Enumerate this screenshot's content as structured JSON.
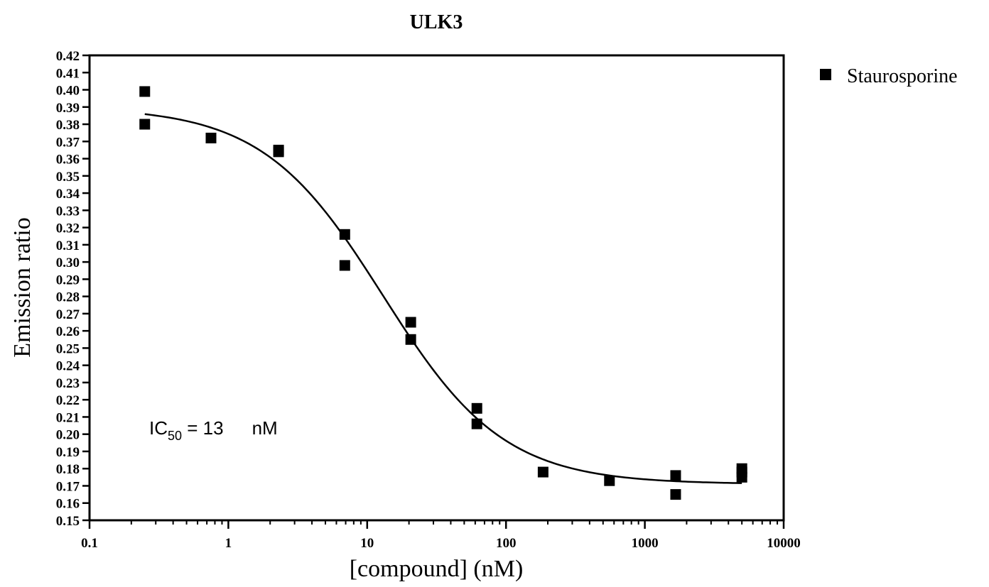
{
  "chart_data": {
    "type": "scatter",
    "title": "ULK3",
    "xlabel": "[compound] (nM)",
    "ylabel": "Emission ratio",
    "xscale": "log",
    "xlim": [
      0.1,
      10000
    ],
    "ylim": [
      0.15,
      0.42
    ],
    "xticks": [
      "0.1",
      "1",
      "10",
      "100",
      "1000",
      "10000"
    ],
    "yticks": [
      "0.15",
      "0.16",
      "0.17",
      "0.18",
      "0.19",
      "0.20",
      "0.21",
      "0.22",
      "0.23",
      "0.24",
      "0.25",
      "0.26",
      "0.27",
      "0.28",
      "0.29",
      "0.30",
      "0.31",
      "0.32",
      "0.33",
      "0.34",
      "0.35",
      "0.36",
      "0.37",
      "0.38",
      "0.39",
      "0.40",
      "0.41",
      "0.42"
    ],
    "grid": false,
    "legend_position": "top-right",
    "series": [
      {
        "name": "Staurosporine",
        "color": "#000000",
        "marker": "square",
        "points": [
          {
            "x": 0.25,
            "y": 0.399
          },
          {
            "x": 0.25,
            "y": 0.38
          },
          {
            "x": 0.75,
            "y": 0.372
          },
          {
            "x": 2.3,
            "y": 0.365
          },
          {
            "x": 2.3,
            "y": 0.364
          },
          {
            "x": 6.9,
            "y": 0.316
          },
          {
            "x": 6.9,
            "y": 0.298
          },
          {
            "x": 20.6,
            "y": 0.265
          },
          {
            "x": 20.6,
            "y": 0.255
          },
          {
            "x": 61.7,
            "y": 0.215
          },
          {
            "x": 61.7,
            "y": 0.206
          },
          {
            "x": 185,
            "y": 0.178
          },
          {
            "x": 556,
            "y": 0.173
          },
          {
            "x": 1667,
            "y": 0.176
          },
          {
            "x": 1667,
            "y": 0.165
          },
          {
            "x": 5000,
            "y": 0.18
          },
          {
            "x": 5000,
            "y": 0.178
          },
          {
            "x": 5000,
            "y": 0.175
          }
        ],
        "fit": {
          "model": "four-parameter logistic",
          "top": 0.39,
          "bottom": 0.171,
          "ic50": 13,
          "hill": 1.0,
          "x_range": [
            0.25,
            5000
          ]
        }
      }
    ],
    "annotations": [
      {
        "text_main": "IC",
        "text_sub": "50",
        "text_rest": " = 13",
        "text_unit": "nM"
      }
    ]
  }
}
